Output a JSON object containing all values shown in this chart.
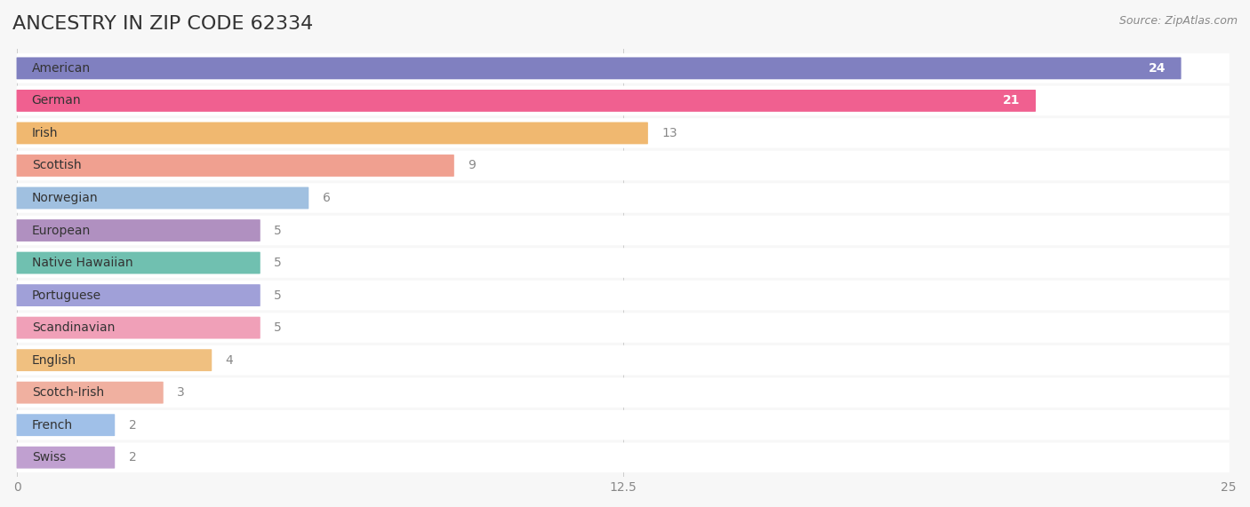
{
  "title": "ANCESTRY IN ZIP CODE 62334",
  "source": "Source: ZipAtlas.com",
  "categories": [
    "American",
    "German",
    "Irish",
    "Scottish",
    "Norwegian",
    "European",
    "Native Hawaiian",
    "Portuguese",
    "Scandinavian",
    "English",
    "Scotch-Irish",
    "French",
    "Swiss"
  ],
  "values": [
    24,
    21,
    13,
    9,
    6,
    5,
    5,
    5,
    5,
    4,
    3,
    2,
    2
  ],
  "bar_colors": [
    "#8080c0",
    "#f06090",
    "#f0b870",
    "#f0a090",
    "#a0c0e0",
    "#b090c0",
    "#70c0b0",
    "#a0a0d8",
    "#f0a0b8",
    "#f0c080",
    "#f0b0a0",
    "#a0c0e8",
    "#c0a0d0"
  ],
  "xlim": [
    0,
    25
  ],
  "xticks": [
    0,
    12.5,
    25
  ],
  "xtick_labels": [
    "0",
    "12.5",
    "25"
  ],
  "background_color": "#f7f7f7",
  "bar_bg_color": "#ffffff",
  "title_fontsize": 16,
  "label_fontsize": 10,
  "value_fontsize": 10,
  "bar_height": 0.65,
  "bar_label_inside_color": "#ffffff",
  "bar_label_outside_color": "#888888"
}
